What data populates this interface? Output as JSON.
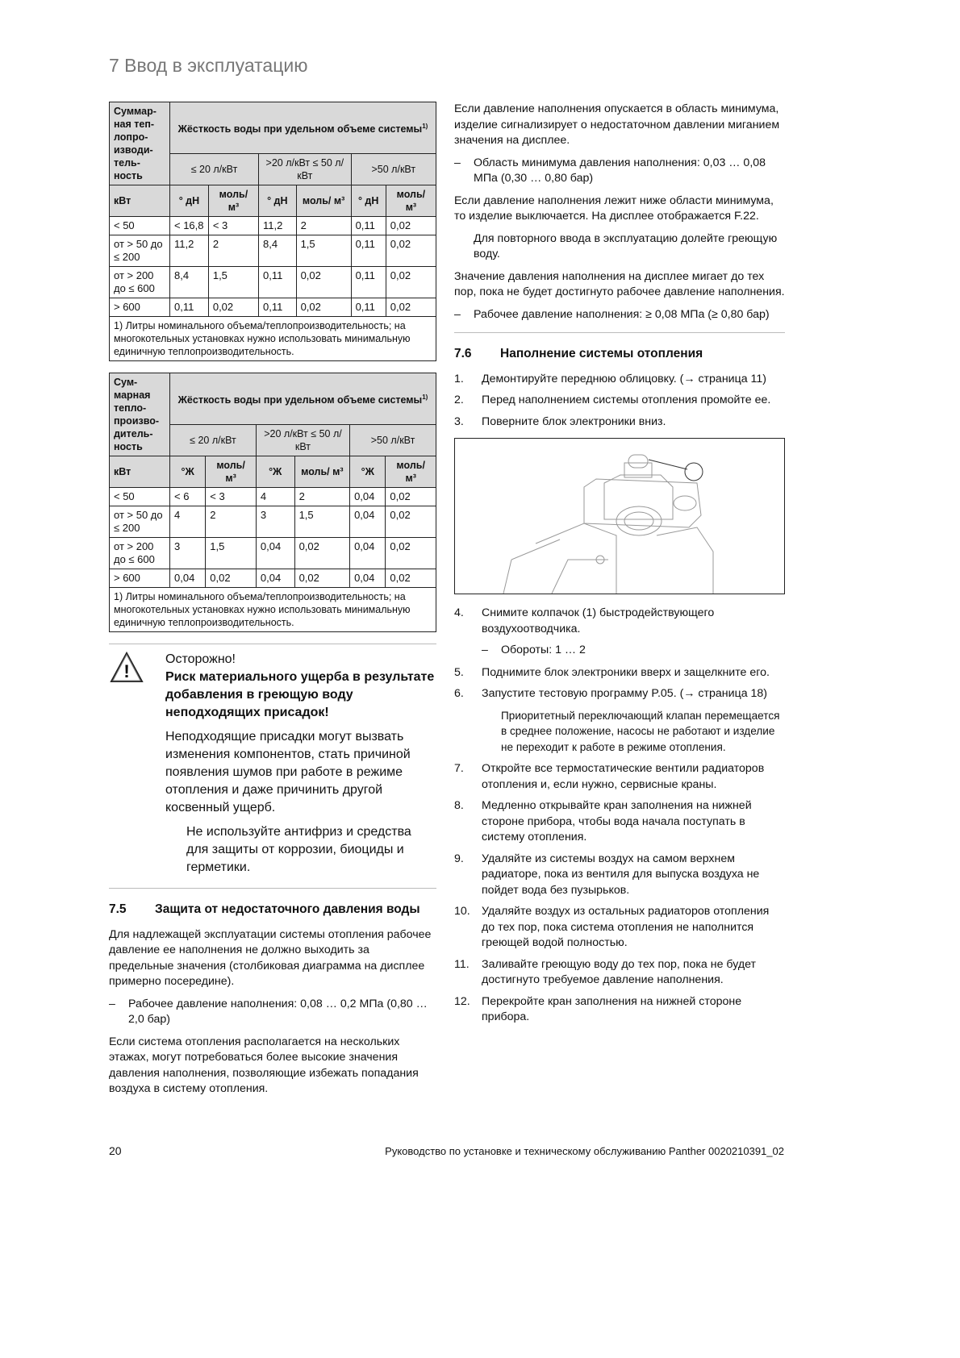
{
  "header": {
    "title": "7 Ввод в эксплуатацию"
  },
  "table1": {
    "corner": "Суммар-ная теп-лопро-изводи-тель-ность",
    "group": "Жёсткость воды при удельном объеме системы",
    "footref": "1)",
    "ranges": [
      "≤ 20 л/кВт",
      ">20 л/кВт ≤ 50 л/кВт",
      ">50 л/кВт"
    ],
    "unit_row": [
      "кВт",
      "° дН",
      "моль/ м³",
      "° дН",
      "моль/ м³",
      "° дН",
      "моль/ м³"
    ],
    "rows": [
      [
        "< 50",
        "< 16,8",
        "< 3",
        "11,2",
        "2",
        "0,11",
        "0,02"
      ],
      [
        "от > 50 до ≤ 200",
        "11,2",
        "2",
        "8,4",
        "1,5",
        "0,11",
        "0,02"
      ],
      [
        "от > 200 до ≤ 600",
        "8,4",
        "1,5",
        "0,11",
        "0,02",
        "0,11",
        "0,02"
      ],
      [
        "> 600",
        "0,11",
        "0,02",
        "0,11",
        "0,02",
        "0,11",
        "0,02"
      ]
    ],
    "footnote": "1) Литры номинального объема/теплопроизводительность; на многокотельных установках нужно использовать минимальную единичную теплопроизводительность."
  },
  "table2": {
    "corner": "Сум-марная тепло-произво-дитель-ность",
    "group": "Жёсткость воды при удельном объеме системы",
    "footref": "1)",
    "ranges": [
      "≤ 20 л/кВт",
      ">20 л/кВт ≤ 50 л/кВт",
      ">50 л/кВт"
    ],
    "unit_row": [
      "кВт",
      "°Ж",
      "моль/ м³",
      "°Ж",
      "моль/ м³",
      "°Ж",
      "моль/ м³"
    ],
    "rows": [
      [
        "< 50",
        "< 6",
        "< 3",
        "4",
        "2",
        "0,04",
        "0,02"
      ],
      [
        "от > 50 до ≤ 200",
        "4",
        "2",
        "3",
        "1,5",
        "0,04",
        "0,02"
      ],
      [
        "от > 200 до ≤ 600",
        "3",
        "1,5",
        "0,04",
        "0,02",
        "0,04",
        "0,02"
      ],
      [
        "> 600",
        "0,04",
        "0,02",
        "0,04",
        "0,02",
        "0,04",
        "0,02"
      ]
    ],
    "footnote": "1) Литры номинального объема/теплопроизводительность; на многокотельных установках нужно использовать минимальную единичную теплопроизводительность."
  },
  "warning": {
    "icon": "warning-triangle-icon",
    "label": "Осторожно!",
    "headline": "Риск материального ущерба в результате добавления в греющую воду неподходящих присадок!",
    "text": "Неподходящие присадки могут вызвать изменения компонентов, стать причиной появления шумов при работе в режиме отопления и даже причинить другой косвенный ущерб.",
    "action": "Не используйте антифриз и средства для защиты от коррозии, биоциды и герметики."
  },
  "s75": {
    "num": "7.5",
    "title": "Защита от недостаточного давления воды",
    "p1": "Для надлежащей эксплуатации системы отопления рабочее давление ее наполнения не должно выходить за предельные значения (столбиковая диаграмма на дисплее примерно посередине).",
    "item": "Рабочее давление наполнения: 0,08 … 0,2 МПа (0,80 … 2,0 бар)",
    "p2": "Если система отопления располагается на нескольких этажах, могут потребоваться более высокие значения давления наполнения, позволяющие избежать попадания воздуха в систему отопления."
  },
  "right": {
    "p1": "Если давление наполнения опускается в область минимума, изделие сигнализирует о недостаточном давлении миганием значения на дисплее.",
    "item1": "Область минимума давления наполнения: 0,03 … 0,08 МПа (0,30 … 0,80 бар)",
    "p2": "Если давление наполнения лежит ниже области минимума, то изделие выключается. На дисплее отображается F.22.",
    "p3": "Для повторного ввода в эксплуатацию долейте греющую воду.",
    "p4": "Значение давления наполнения на дисплее мигает до тех пор, пока не будет достигнуто рабочее давление наполнения.",
    "item2": "Рабочее давление наполнения: ≥ 0,08 МПа (≥ 0,80 бар)"
  },
  "s76": {
    "num": "7.6",
    "title": "Наполнение системы отопления",
    "steps_a": [
      {
        "n": "1.",
        "t": "Демонтируйте переднюю облицовку. (→ страница 11)"
      },
      {
        "n": "2.",
        "t": "Перед наполнением системы отопления промойте ее."
      },
      {
        "n": "3.",
        "t": "Поверните блок электроники вниз."
      }
    ],
    "step4": {
      "n": "4.",
      "t": "Снимите колпачок (1) быстродействующего воздухоотводчика.",
      "sub": "Обороты: 1 … 2"
    },
    "step5": {
      "n": "5.",
      "t": "Поднимите блок электроники вверх и защелкните его."
    },
    "step6": {
      "n": "6.",
      "t": "Запустите тестовую программу P.05. (→ страница 18)",
      "note": "Приоритетный переключающий клапан перемещается в среднее положение, насосы не работают и изделие не переходит к работе в режиме отопления."
    },
    "steps_b": [
      {
        "n": "7.",
        "t": "Откройте все термостатические вентили радиаторов отопления и, если нужно, сервисные краны."
      },
      {
        "n": "8.",
        "t": "Медленно открывайте кран заполнения на нижней стороне прибора, чтобы вода начала поступать в систему отопления."
      },
      {
        "n": "9.",
        "t": "Удаляйте из системы воздух на самом верхнем радиаторе, пока из вентиля для выпуска воздуха не пойдет вода без пузырьков."
      },
      {
        "n": "10.",
        "t": "Удаляйте воздух из остальных радиаторов отопления до тех пор, пока система отопления не наполнится греющей водой полностью."
      },
      {
        "n": "11.",
        "t": "Заливайте греющую воду до тех пор, пока не будет достигнуто требуемое давление наполнения."
      },
      {
        "n": "12.",
        "t": "Перекройте кран заполнения на нижней стороне прибора."
      }
    ]
  },
  "footer": {
    "page": "20",
    "doc": "Руководство по установке и техническому обслуживанию Panther 0020210391_02"
  }
}
